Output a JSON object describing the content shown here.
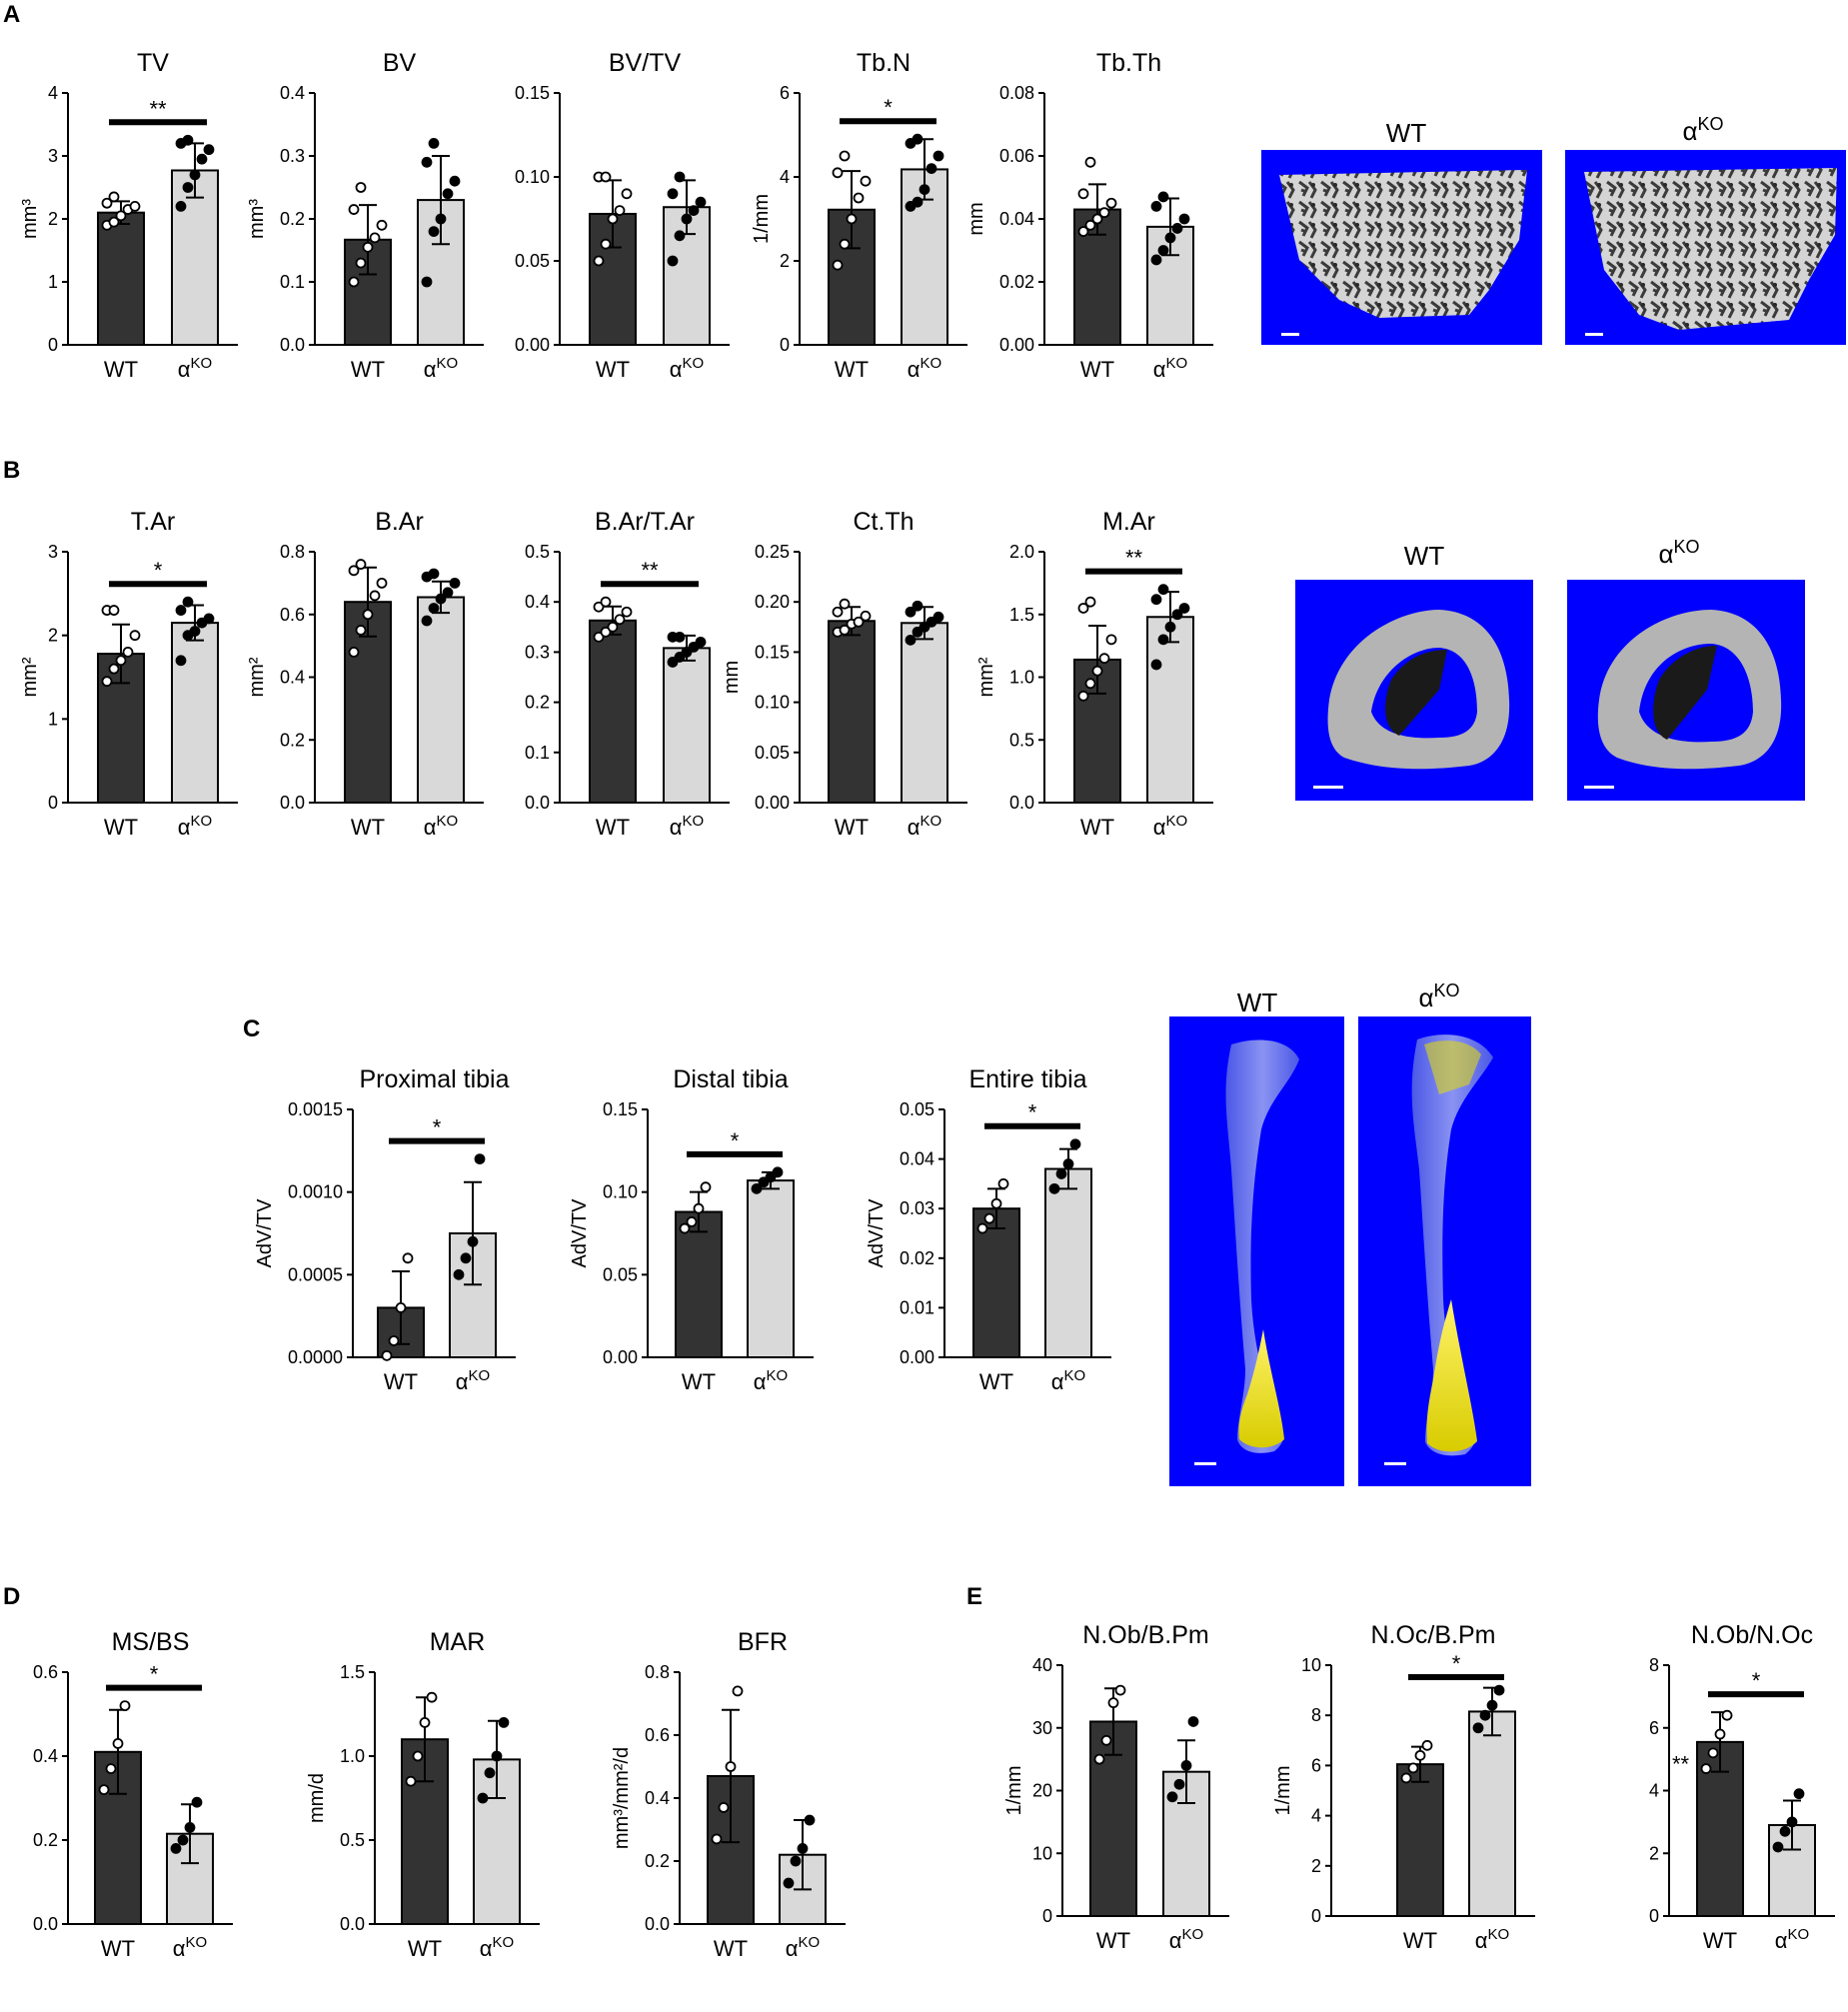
{
  "panel_letters": [
    "A",
    "B",
    "C",
    "D",
    "E"
  ],
  "image_labels": {
    "wt": "WT",
    "ko": "α",
    "ko_sup": "KO"
  },
  "categories": [
    "WT",
    "α"
  ],
  "ko_superscript": "KO",
  "colors": {
    "wt_bar": "#333333",
    "ko_bar": "#d9d9d9",
    "scan_background": "#0000ff",
    "bone_grey": "#b4b4b4",
    "adipose_yellow": "#e8e000"
  },
  "chart_data": [
    {
      "id": "A-TV",
      "type": "bar",
      "title": "TV",
      "ylabel": "mm³",
      "ylim": [
        0,
        4
      ],
      "yticks": [
        0,
        1,
        2,
        3,
        4
      ],
      "tick_labels": [
        "0",
        "1",
        "2",
        "3",
        "4"
      ],
      "categories": [
        "WT",
        "αKO"
      ],
      "values": [
        2.1,
        2.77
      ],
      "errors": [
        0.18,
        0.43
      ],
      "points": [
        [
          1.9,
          1.95,
          2.05,
          2.15,
          2.2,
          2.25,
          2.35
        ],
        [
          2.2,
          2.5,
          2.7,
          2.95,
          3.1,
          3.2,
          3.25
        ]
      ],
      "significance": "**"
    },
    {
      "id": "A-BV",
      "type": "bar",
      "title": "BV",
      "ylabel": "mm³",
      "ylim": [
        0,
        0.4
      ],
      "yticks": [
        0,
        0.1,
        0.2,
        0.3,
        0.4
      ],
      "tick_labels": [
        "0.0",
        "0.1",
        "0.2",
        "0.3",
        "0.4"
      ],
      "categories": [
        "WT",
        "αKO"
      ],
      "values": [
        0.167,
        0.23
      ],
      "errors": [
        0.055,
        0.07
      ],
      "points": [
        [
          0.1,
          0.13,
          0.155,
          0.17,
          0.19,
          0.215,
          0.25
        ],
        [
          0.1,
          0.18,
          0.2,
          0.24,
          0.26,
          0.29,
          0.32
        ]
      ],
      "significance": ""
    },
    {
      "id": "A-BVTV",
      "type": "bar",
      "title": "BV/TV",
      "ylabel": "",
      "ylim": [
        0,
        0.15
      ],
      "yticks": [
        0,
        0.05,
        0.1,
        0.15
      ],
      "tick_labels": [
        "0.00",
        "0.05",
        "0.10",
        "0.15"
      ],
      "categories": [
        "WT",
        "αKO"
      ],
      "values": [
        0.078,
        0.082
      ],
      "errors": [
        0.02,
        0.016
      ],
      "points": [
        [
          0.05,
          0.06,
          0.075,
          0.08,
          0.09,
          0.1,
          0.1
        ],
        [
          0.05,
          0.065,
          0.075,
          0.08,
          0.085,
          0.09,
          0.1
        ]
      ],
      "significance": ""
    },
    {
      "id": "A-TbN",
      "type": "bar",
      "title": "Tb.N",
      "ylabel": "1/mm",
      "ylim": [
        0,
        6
      ],
      "yticks": [
        0,
        2,
        4,
        6
      ],
      "tick_labels": [
        "0",
        "2",
        "4",
        "6"
      ],
      "categories": [
        "WT",
        "αKO"
      ],
      "values": [
        3.22,
        4.18
      ],
      "errors": [
        0.92,
        0.72
      ],
      "points": [
        [
          1.9,
          2.4,
          3.0,
          3.5,
          3.9,
          4.1,
          4.5
        ],
        [
          3.3,
          3.4,
          3.7,
          4.2,
          4.5,
          4.8,
          4.9
        ]
      ],
      "significance": "*"
    },
    {
      "id": "A-TbTh",
      "type": "bar",
      "title": "Tb.Th",
      "ylabel": "mm",
      "ylim": [
        0,
        0.08
      ],
      "yticks": [
        0,
        0.02,
        0.04,
        0.06,
        0.08
      ],
      "tick_labels": [
        "0.00",
        "0.02",
        "0.04",
        "0.06",
        "0.08"
      ],
      "categories": [
        "WT",
        "αKO"
      ],
      "values": [
        0.043,
        0.0375
      ],
      "errors": [
        0.008,
        0.009
      ],
      "points": [
        [
          0.036,
          0.038,
          0.04,
          0.042,
          0.045,
          0.048,
          0.058
        ],
        [
          0.027,
          0.03,
          0.034,
          0.037,
          0.04,
          0.044,
          0.047
        ]
      ],
      "significance": ""
    },
    {
      "id": "B-TAr",
      "type": "bar",
      "title": "T.Ar",
      "ylabel": "mm²",
      "ylim": [
        0,
        3
      ],
      "yticks": [
        0,
        1,
        2,
        3
      ],
      "tick_labels": [
        "0",
        "1",
        "2",
        "3"
      ],
      "categories": [
        "WT",
        "αKO"
      ],
      "values": [
        1.78,
        2.15
      ],
      "errors": [
        0.35,
        0.21
      ],
      "points": [
        [
          1.45,
          1.6,
          1.7,
          1.8,
          2.0,
          2.3,
          2.3
        ],
        [
          1.7,
          2.0,
          2.05,
          2.15,
          2.2,
          2.3,
          2.4
        ]
      ],
      "significance": "*"
    },
    {
      "id": "B-BAr",
      "type": "bar",
      "title": "B.Ar",
      "ylabel": "mm²",
      "ylim": [
        0,
        0.8
      ],
      "yticks": [
        0,
        0.2,
        0.4,
        0.6,
        0.8
      ],
      "tick_labels": [
        "0.0",
        "0.2",
        "0.4",
        "0.6",
        "0.8"
      ],
      "categories": [
        "WT",
        "αKO"
      ],
      "values": [
        0.64,
        0.655
      ],
      "errors": [
        0.11,
        0.05
      ],
      "points": [
        [
          0.48,
          0.55,
          0.6,
          0.66,
          0.7,
          0.74,
          0.76
        ],
        [
          0.58,
          0.62,
          0.65,
          0.67,
          0.7,
          0.72,
          0.73
        ]
      ],
      "significance": ""
    },
    {
      "id": "B-BArTAr",
      "type": "bar",
      "title": "B.Ar/T.Ar",
      "ylabel": "",
      "ylim": [
        0,
        0.5
      ],
      "yticks": [
        0,
        0.1,
        0.2,
        0.3,
        0.4,
        0.5
      ],
      "tick_labels": [
        "0.0",
        "0.1",
        "0.2",
        "0.3",
        "0.4",
        "0.5"
      ],
      "categories": [
        "WT",
        "αKO"
      ],
      "values": [
        0.363,
        0.308
      ],
      "errors": [
        0.028,
        0.025
      ],
      "points": [
        [
          0.33,
          0.34,
          0.35,
          0.365,
          0.38,
          0.39,
          0.4
        ],
        [
          0.28,
          0.29,
          0.3,
          0.31,
          0.32,
          0.33,
          0.33
        ]
      ],
      "significance": "**"
    },
    {
      "id": "B-CtTh",
      "type": "bar",
      "title": "Ct.Th",
      "ylabel": "mm",
      "ylim": [
        0,
        0.25
      ],
      "yticks": [
        0,
        0.05,
        0.1,
        0.15,
        0.2,
        0.25
      ],
      "tick_labels": [
        "0.00",
        "0.05",
        "0.10",
        "0.15",
        "0.20",
        "0.25"
      ],
      "categories": [
        "WT",
        "αKO"
      ],
      "values": [
        0.181,
        0.179
      ],
      "errors": [
        0.014,
        0.016
      ],
      "points": [
        [
          0.17,
          0.172,
          0.178,
          0.18,
          0.186,
          0.19,
          0.198
        ],
        [
          0.162,
          0.17,
          0.175,
          0.18,
          0.185,
          0.19,
          0.196
        ]
      ],
      "significance": ""
    },
    {
      "id": "B-MAr",
      "type": "bar",
      "title": "M.Ar",
      "ylabel": "mm²",
      "ylim": [
        0,
        2
      ],
      "yticks": [
        0,
        0.5,
        1,
        1.5,
        2
      ],
      "tick_labels": [
        "0.0",
        "0.5",
        "1.0",
        "1.5",
        "2.0"
      ],
      "categories": [
        "WT",
        "αKO"
      ],
      "values": [
        1.14,
        1.48
      ],
      "errors": [
        0.27,
        0.2
      ],
      "points": [
        [
          0.85,
          0.95,
          1.05,
          1.15,
          1.3,
          1.55,
          1.6
        ],
        [
          1.1,
          1.3,
          1.4,
          1.5,
          1.55,
          1.62,
          1.7
        ]
      ],
      "significance": "**"
    },
    {
      "id": "C-Prox",
      "type": "bar",
      "title": "Proximal tibia",
      "ylabel": "AdV/TV",
      "ylim": [
        0,
        0.0015
      ],
      "yticks": [
        0,
        0.0005,
        0.001,
        0.0015
      ],
      "tick_labels": [
        "0.0000",
        "0.0005",
        "0.0010",
        "0.0015"
      ],
      "categories": [
        "WT",
        "αKO"
      ],
      "values": [
        0.0003,
        0.00075
      ],
      "errors": [
        0.00022,
        0.00031
      ],
      "points": [
        [
          1e-05,
          0.0001,
          0.0003,
          0.0006
        ],
        [
          0.0005,
          0.0006,
          0.0007,
          0.0012
        ]
      ],
      "significance": "*"
    },
    {
      "id": "C-Dist",
      "type": "bar",
      "title": "Distal tibia",
      "ylabel": "AdV/TV",
      "ylim": [
        0,
        0.15
      ],
      "yticks": [
        0,
        0.05,
        0.1,
        0.15
      ],
      "tick_labels": [
        "0.00",
        "0.05",
        "0.10",
        "0.15"
      ],
      "categories": [
        "WT",
        "αKO"
      ],
      "values": [
        0.088,
        0.107
      ],
      "errors": [
        0.012,
        0.005
      ],
      "points": [
        [
          0.078,
          0.082,
          0.09,
          0.103
        ],
        [
          0.102,
          0.106,
          0.109,
          0.112
        ]
      ],
      "significance": "*"
    },
    {
      "id": "C-Ent",
      "type": "bar",
      "title": "Entire tibia",
      "ylabel": "AdV/TV",
      "ylim": [
        0,
        0.05
      ],
      "yticks": [
        0,
        0.01,
        0.02,
        0.03,
        0.04,
        0.05
      ],
      "tick_labels": [
        "0.00",
        "0.01",
        "0.02",
        "0.03",
        "0.04",
        "0.05"
      ],
      "categories": [
        "WT",
        "αKO"
      ],
      "values": [
        0.03,
        0.038
      ],
      "errors": [
        0.004,
        0.004
      ],
      "points": [
        [
          0.026,
          0.028,
          0.031,
          0.035
        ],
        [
          0.034,
          0.037,
          0.039,
          0.043
        ]
      ],
      "significance": "*"
    },
    {
      "id": "D-MSBS",
      "type": "bar",
      "title": "MS/BS",
      "ylabel": "",
      "ylim": [
        0,
        0.6
      ],
      "yticks": [
        0,
        0.2,
        0.4,
        0.6
      ],
      "tick_labels": [
        "0.0",
        "0.2",
        "0.4",
        "0.6"
      ],
      "categories": [
        "WT",
        "αKO"
      ],
      "values": [
        0.41,
        0.215
      ],
      "errors": [
        0.1,
        0.07
      ],
      "points": [
        [
          0.32,
          0.37,
          0.43,
          0.52
        ],
        [
          0.18,
          0.2,
          0.23,
          0.29
        ]
      ],
      "significance": "*"
    },
    {
      "id": "D-MAR",
      "type": "bar",
      "title": "MAR",
      "ylabel": "mm/d",
      "ylim": [
        0,
        1.5
      ],
      "yticks": [
        0,
        0.5,
        1,
        1.5
      ],
      "tick_labels": [
        "0.0",
        "0.5",
        "1.0",
        "1.5"
      ],
      "categories": [
        "WT",
        "αKO"
      ],
      "values": [
        1.1,
        0.98
      ],
      "errors": [
        0.25,
        0.23
      ],
      "points": [
        [
          0.85,
          1.0,
          1.2,
          1.35
        ],
        [
          0.75,
          0.9,
          1.0,
          1.2
        ]
      ],
      "significance": ""
    },
    {
      "id": "D-BFR",
      "type": "bar",
      "title": "BFR",
      "ylabel": "mm³/mm²/d",
      "ylim": [
        0,
        0.8
      ],
      "yticks": [
        0,
        0.2,
        0.4,
        0.6,
        0.8
      ],
      "tick_labels": [
        "0.0",
        "0.2",
        "0.4",
        "0.6",
        "0.8"
      ],
      "categories": [
        "WT",
        "αKO"
      ],
      "values": [
        0.47,
        0.22
      ],
      "errors": [
        0.21,
        0.11
      ],
      "points": [
        [
          0.27,
          0.37,
          0.5,
          0.74
        ],
        [
          0.13,
          0.2,
          0.24,
          0.33
        ]
      ],
      "significance": ""
    },
    {
      "id": "E-NObBPm",
      "type": "bar",
      "title": "N.Ob/B.Pm",
      "ylabel": "1/mm",
      "ylim": [
        0,
        40
      ],
      "yticks": [
        0,
        10,
        20,
        30,
        40
      ],
      "tick_labels": [
        "0",
        "10",
        "20",
        "30",
        "40"
      ],
      "categories": [
        "WT",
        "αKO"
      ],
      "values": [
        31,
        23
      ],
      "errors": [
        5.3,
        5
      ],
      "points": [
        [
          25,
          28,
          34,
          36
        ],
        [
          19,
          21,
          24,
          31
        ]
      ],
      "significance": ""
    },
    {
      "id": "E-NOcBPm",
      "type": "bar",
      "title": "N.Oc/B.Pm",
      "ylabel": "1/mm",
      "ylim": [
        0,
        10
      ],
      "yticks": [
        0,
        2,
        4,
        6,
        8,
        10
      ],
      "tick_labels": [
        "0",
        "2",
        "4",
        "6",
        "8",
        "10"
      ],
      "categories": [
        "WT",
        "αKO"
      ],
      "values": [
        6.05,
        8.15
      ],
      "errors": [
        0.7,
        0.95
      ],
      "points": [
        [
          5.5,
          5.9,
          6.4,
          6.8
        ],
        [
          7.5,
          8.0,
          8.4,
          9.0
        ]
      ],
      "significance": "*"
    },
    {
      "id": "E-NObNOc",
      "type": "bar",
      "title": "N.Ob/N.Oc",
      "ylabel": "",
      "ylim": [
        0,
        8
      ],
      "yticks": [
        0,
        2,
        4,
        6,
        8
      ],
      "tick_labels": [
        "0",
        "2",
        "4",
        "6",
        "8"
      ],
      "categories": [
        "WT",
        "αKO"
      ],
      "values": [
        5.55,
        2.9
      ],
      "errors": [
        0.95,
        0.78
      ],
      "points": [
        [
          4.7,
          5.2,
          5.8,
          6.4
        ],
        [
          2.2,
          2.7,
          3.0,
          3.9
        ]
      ],
      "significance": "*",
      "side_note": "**"
    }
  ]
}
